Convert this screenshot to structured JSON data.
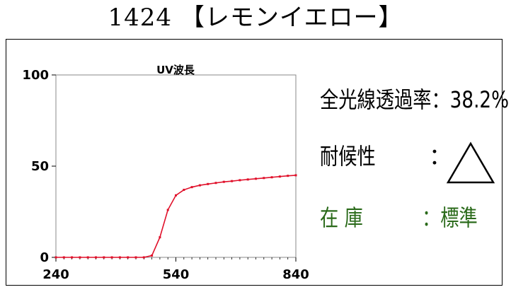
{
  "header": {
    "title": "1424 【レモンイエロー】"
  },
  "properties": {
    "transmittance_text": "全光線透過率：38.2%",
    "weather_label": "耐候性",
    "weather_colon": "：",
    "weather_icon": "triangle-icon",
    "stock_label": "在 庫",
    "stock_value": "：標準",
    "stock_color": "#2a6a1a"
  },
  "chart_data": {
    "type": "line",
    "title": "UV波長",
    "xlabel": "",
    "ylabel": "",
    "xlim": [
      240,
      840
    ],
    "ylim": [
      0,
      100
    ],
    "xticks": [
      240,
      540,
      840
    ],
    "yticks": [
      0,
      50,
      100
    ],
    "grid": false,
    "line_color": "#e0102a",
    "x": [
      240,
      260,
      280,
      300,
      320,
      340,
      360,
      380,
      400,
      420,
      440,
      460,
      480,
      500,
      520,
      540,
      560,
      580,
      600,
      620,
      640,
      660,
      680,
      700,
      720,
      740,
      760,
      780,
      800,
      820,
      840
    ],
    "values": [
      0,
      0,
      0,
      0,
      0,
      0,
      0,
      0,
      0,
      0,
      0,
      0,
      1,
      11,
      26,
      34,
      37,
      38.5,
      39.5,
      40.2,
      40.8,
      41.4,
      41.8,
      42.3,
      42.7,
      43.1,
      43.5,
      43.9,
      44.3,
      44.7,
      45
    ]
  }
}
